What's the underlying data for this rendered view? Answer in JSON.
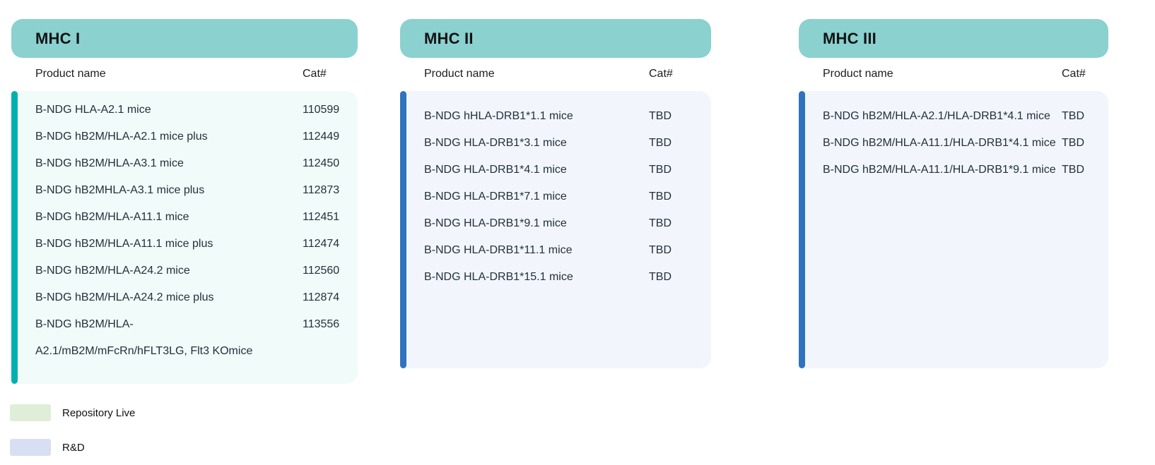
{
  "colors": {
    "header_pill": "#8ad1d0",
    "repository_live_accent": "#00b0b1",
    "repository_live_card_bg": "#f0fbfa",
    "rnd_accent": "#2f73bf",
    "rnd_card_bg": "#f2f6fc",
    "legend_repository_live": "#deeed9",
    "legend_rnd": "#d8dff2"
  },
  "columns": [
    {
      "title": "MHC I",
      "product_header": "Product name",
      "cat_header": "Cat#",
      "status": "repository-live",
      "rows": [
        {
          "name": "B-NDG HLA-A2.1 mice",
          "cat": "110599"
        },
        {
          "name": "B-NDG hB2M/HLA-A2.1 mice plus",
          "cat": "112449"
        },
        {
          "name": "B-NDG hB2M/HLA-A3.1 mice",
          "cat": "112450"
        },
        {
          "name": "B-NDG hB2MHLA-A3.1 mice plus",
          "cat": "112873"
        },
        {
          "name": "B-NDG hB2M/HLA-A11.1 mice",
          "cat": "112451"
        },
        {
          "name": "B-NDG hB2M/HLA-A11.1 mice plus",
          "cat": "112474"
        },
        {
          "name": "B-NDG hB2M/HLA-A24.2 mice",
          "cat": "112560"
        },
        {
          "name": "B-NDG hB2M/HLA-A24.2 mice plus",
          "cat": "112874"
        },
        {
          "name": "B-NDG hB2M/HLA-",
          "cat": "113556"
        },
        {
          "name": "A2.1/mB2M/mFcRn/hFLT3LG, Flt3 KOmice",
          "cat": ""
        }
      ]
    },
    {
      "title": "MHC II",
      "product_header": "Product name",
      "cat_header": "Cat#",
      "status": "rnd",
      "rows": [
        {
          "name": "B-NDG hHLA-DRB1*1.1 mice",
          "cat": "TBD"
        },
        {
          "name": "B-NDG HLA-DRB1*3.1 mice",
          "cat": "TBD"
        },
        {
          "name": "B-NDG HLA-DRB1*4.1 mice",
          "cat": "TBD"
        },
        {
          "name": "B-NDG HLA-DRB1*7.1 mice",
          "cat": "TBD"
        },
        {
          "name": "B-NDG HLA-DRB1*9.1 mice",
          "cat": "TBD"
        },
        {
          "name": "B-NDG HLA-DRB1*11.1 mice",
          "cat": "TBD"
        },
        {
          "name": "B-NDG HLA-DRB1*15.1 mice",
          "cat": "TBD"
        }
      ]
    },
    {
      "title": "MHC III",
      "product_header": "Product name",
      "cat_header": "Cat#",
      "status": "rnd",
      "rows": [
        {
          "name": "B-NDG hB2M/HLA-A2.1/HLA-DRB1*4.1 mice",
          "cat": "TBD"
        },
        {
          "name": "B-NDG hB2M/HLA-A11.1/HLA-DRB1*4.1 mice",
          "cat": "TBD"
        },
        {
          "name": "B-NDG hB2M/HLA-A11.1/HLA-DRB1*9.1 mice",
          "cat": "TBD"
        }
      ]
    }
  ],
  "legend": {
    "items": [
      {
        "label": "Repository Live"
      },
      {
        "label": "R&D"
      }
    ]
  }
}
